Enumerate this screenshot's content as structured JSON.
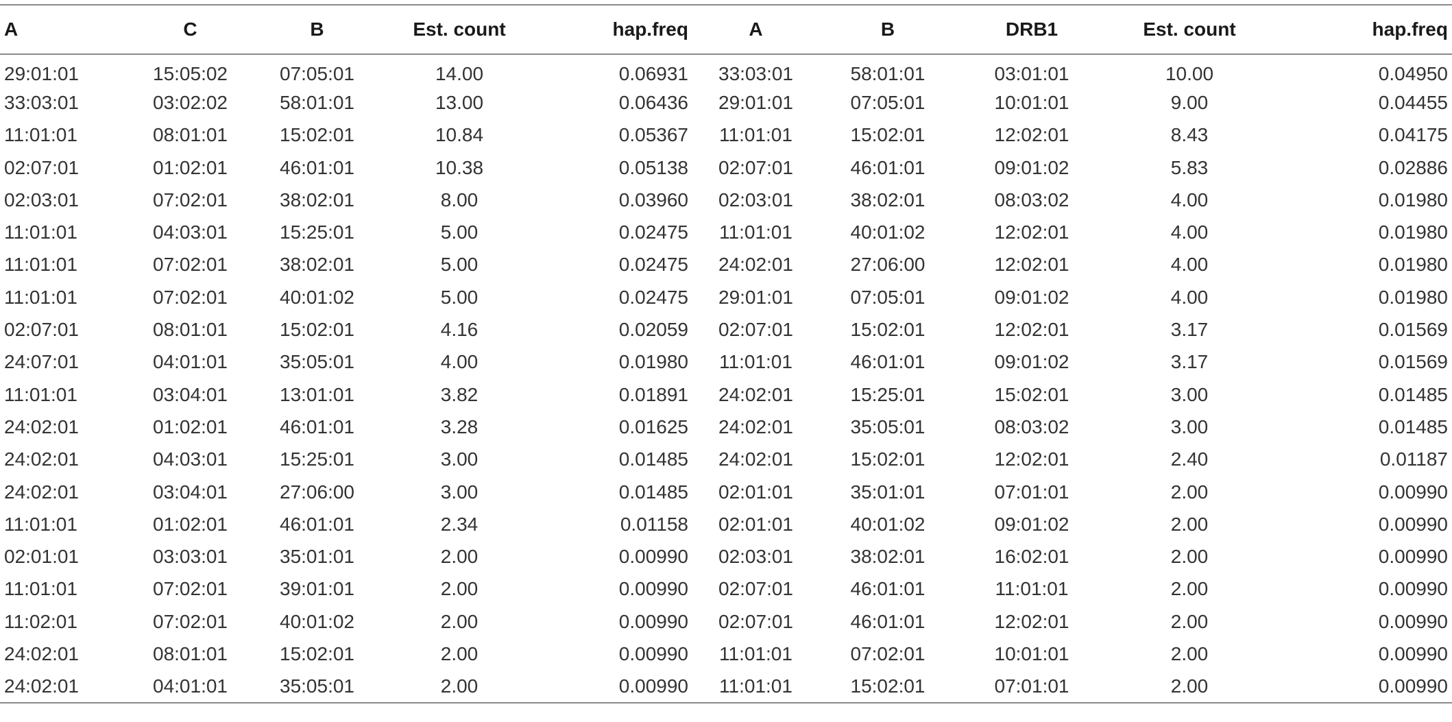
{
  "table": {
    "headers": [
      "A",
      "C",
      "B",
      "Est. count",
      "hap.freq",
      "A",
      "B",
      "DRB1",
      "Est. count",
      "hap.freq"
    ],
    "rows": [
      [
        "29:01:01",
        "15:05:02",
        "07:05:01",
        "14.00",
        "0.06931",
        "33:03:01",
        "58:01:01",
        "03:01:01",
        "10.00",
        "0.04950"
      ],
      [
        "33:03:01",
        "03:02:02",
        "58:01:01",
        "13.00",
        "0.06436",
        "29:01:01",
        "07:05:01",
        "10:01:01",
        "9.00",
        "0.04455"
      ],
      [
        "11:01:01",
        "08:01:01",
        "15:02:01",
        "10.84",
        "0.05367",
        "11:01:01",
        "15:02:01",
        "12:02:01",
        "8.43",
        "0.04175"
      ],
      [
        "02:07:01",
        "01:02:01",
        "46:01:01",
        "10.38",
        "0.05138",
        "02:07:01",
        "46:01:01",
        "09:01:02",
        "5.83",
        "0.02886"
      ],
      [
        "02:03:01",
        "07:02:01",
        "38:02:01",
        "8.00",
        "0.03960",
        "02:03:01",
        "38:02:01",
        "08:03:02",
        "4.00",
        "0.01980"
      ],
      [
        "11:01:01",
        "04:03:01",
        "15:25:01",
        "5.00",
        "0.02475",
        "11:01:01",
        "40:01:02",
        "12:02:01",
        "4.00",
        "0.01980"
      ],
      [
        "11:01:01",
        "07:02:01",
        "38:02:01",
        "5.00",
        "0.02475",
        "24:02:01",
        "27:06:00",
        "12:02:01",
        "4.00",
        "0.01980"
      ],
      [
        "11:01:01",
        "07:02:01",
        "40:01:02",
        "5.00",
        "0.02475",
        "29:01:01",
        "07:05:01",
        "09:01:02",
        "4.00",
        "0.01980"
      ],
      [
        "02:07:01",
        "08:01:01",
        "15:02:01",
        "4.16",
        "0.02059",
        "02:07:01",
        "15:02:01",
        "12:02:01",
        "3.17",
        "0.01569"
      ],
      [
        "24:07:01",
        "04:01:01",
        "35:05:01",
        "4.00",
        "0.01980",
        "11:01:01",
        "46:01:01",
        "09:01:02",
        "3.17",
        "0.01569"
      ],
      [
        "11:01:01",
        "03:04:01",
        "13:01:01",
        "3.82",
        "0.01891",
        "24:02:01",
        "15:25:01",
        "15:02:01",
        "3.00",
        "0.01485"
      ],
      [
        "24:02:01",
        "01:02:01",
        "46:01:01",
        "3.28",
        "0.01625",
        "24:02:01",
        "35:05:01",
        "08:03:02",
        "3.00",
        "0.01485"
      ],
      [
        "24:02:01",
        "04:03:01",
        "15:25:01",
        "3.00",
        "0.01485",
        "24:02:01",
        "15:02:01",
        "12:02:01",
        "2.40",
        "0.01187"
      ],
      [
        "24:02:01",
        "03:04:01",
        "27:06:00",
        "3.00",
        "0.01485",
        "02:01:01",
        "35:01:01",
        "07:01:01",
        "2.00",
        "0.00990"
      ],
      [
        "11:01:01",
        "01:02:01",
        "46:01:01",
        "2.34",
        "0.01158",
        "02:01:01",
        "40:01:02",
        "09:01:02",
        "2.00",
        "0.00990"
      ],
      [
        "02:01:01",
        "03:03:01",
        "35:01:01",
        "2.00",
        "0.00990",
        "02:03:01",
        "38:02:01",
        "16:02:01",
        "2.00",
        "0.00990"
      ],
      [
        "11:01:01",
        "07:02:01",
        "39:01:01",
        "2.00",
        "0.00990",
        "02:07:01",
        "46:01:01",
        "11:01:01",
        "2.00",
        "0.00990"
      ],
      [
        "11:02:01",
        "07:02:01",
        "40:01:02",
        "2.00",
        "0.00990",
        "02:07:01",
        "46:01:01",
        "12:02:01",
        "2.00",
        "0.00990"
      ],
      [
        "24:02:01",
        "08:01:01",
        "15:02:01",
        "2.00",
        "0.00990",
        "11:01:01",
        "07:02:01",
        "10:01:01",
        "2.00",
        "0.00990"
      ],
      [
        "24:02:01",
        "04:01:01",
        "35:05:01",
        "2.00",
        "0.00990",
        "11:01:01",
        "15:02:01",
        "07:01:01",
        "2.00",
        "0.00990"
      ]
    ]
  }
}
